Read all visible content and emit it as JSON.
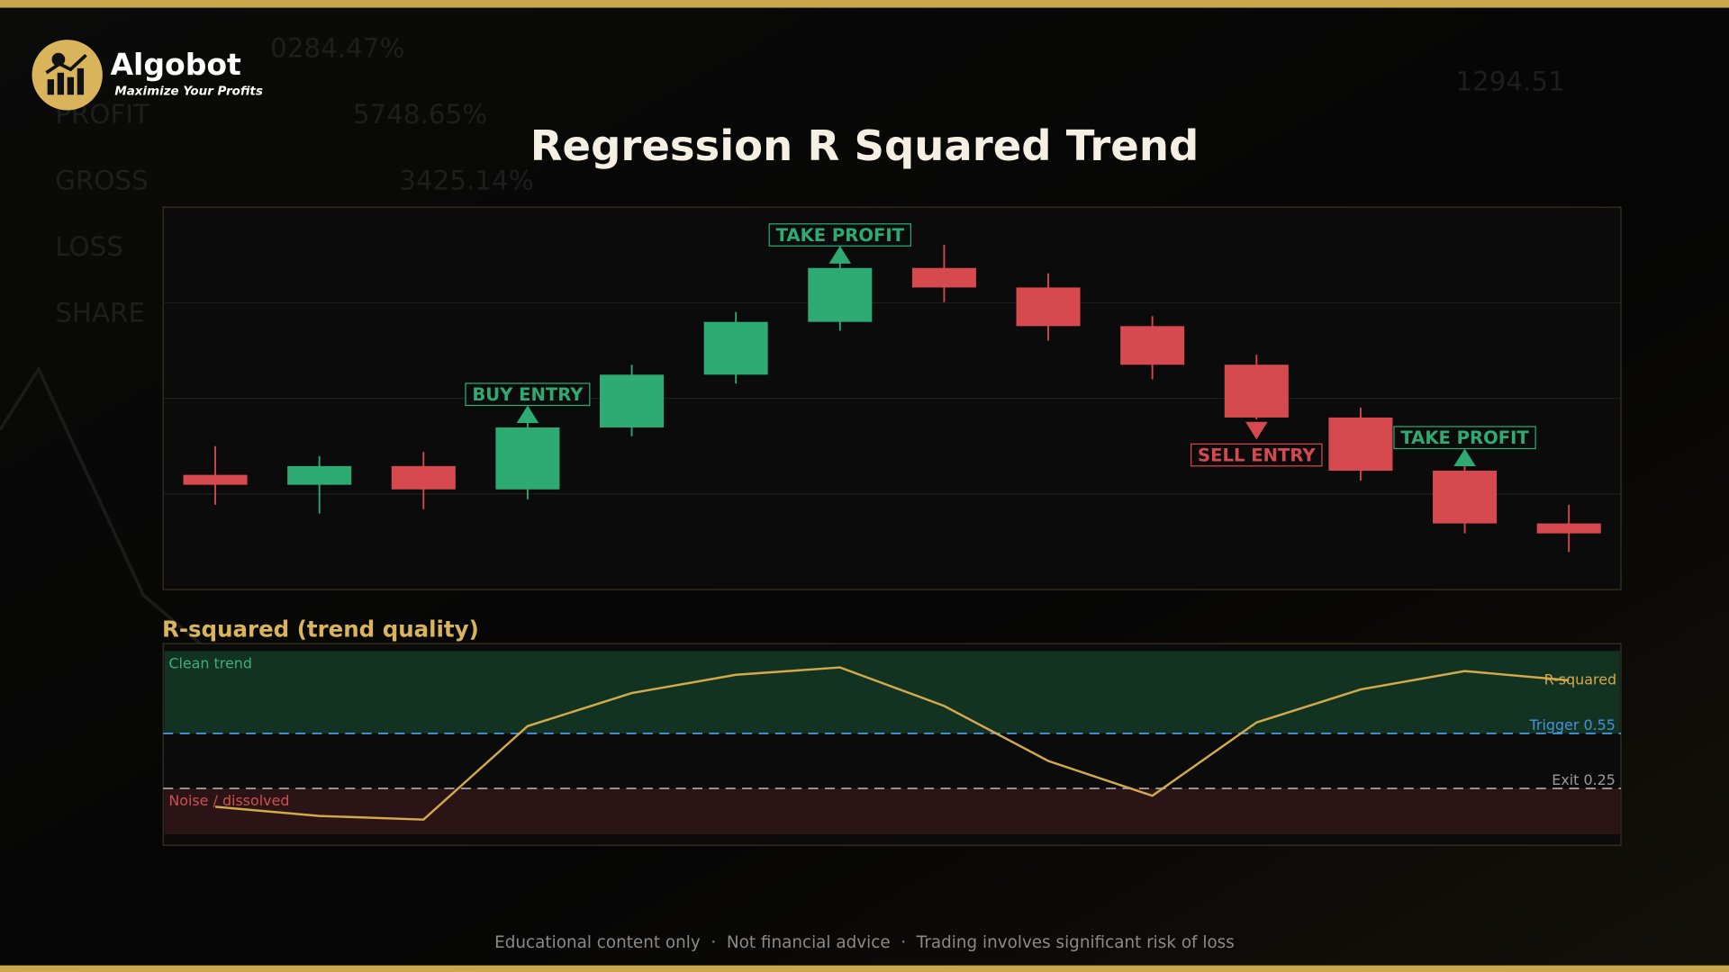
{
  "brand": {
    "name": "Algobot",
    "tagline": "Maximize Your Profits"
  },
  "background_text": {
    "labels": [
      "PROFIT",
      "GROSS",
      "LOSS",
      "SHARE"
    ],
    "values": [
      "0284.47%",
      "5748.65%",
      "3425.14%",
      "1294.51"
    ]
  },
  "chart_data": [
    {
      "type": "candlestick",
      "title": "Regression R Squared Trend",
      "open": [
        30.0,
        27.4,
        32.3,
        26.2,
        42.4,
        56.2,
        70.0,
        84.1,
        79.0,
        68.9,
        58.8,
        45.0,
        31.1,
        17.3
      ],
      "high": [
        37.5,
        34.9,
        36.0,
        43.8,
        58.8,
        72.6,
        87.9,
        90.2,
        82.7,
        71.5,
        61.4,
        47.6,
        33.7,
        22.2
      ],
      "low": [
        22.2,
        19.9,
        21.0,
        23.6,
        40.1,
        53.9,
        67.7,
        75.2,
        65.1,
        55.0,
        44.5,
        28.5,
        14.7,
        9.8
      ],
      "close": [
        27.4,
        32.3,
        26.2,
        42.4,
        56.2,
        70.0,
        84.1,
        79.0,
        68.9,
        58.8,
        45.0,
        31.1,
        17.3,
        14.7
      ],
      "up_color": "#2eaa73",
      "down_color": "#d64a4f",
      "ylim": [
        0,
        100
      ],
      "grid_lines": [
        25,
        50,
        75
      ],
      "signals": [
        null,
        null,
        null,
        {
          "label": "BUY ENTRY",
          "direction": "up",
          "color": "#2eaa73"
        },
        null,
        null,
        {
          "label": "TAKE PROFIT",
          "direction": "up",
          "color": "#2eaa73"
        },
        null,
        null,
        null,
        {
          "label": "SELL ENTRY",
          "direction": "down",
          "color": "#d64a4f"
        },
        null,
        {
          "label": "TAKE PROFIT",
          "direction": "up",
          "color": "#2eaa73"
        },
        null
      ]
    },
    {
      "type": "line",
      "title": "R-squared (trend quality)",
      "series": [
        {
          "name": "R-squared",
          "color": "#d4a94a",
          "values": [
            0.15,
            0.1,
            0.08,
            0.59,
            0.77,
            0.87,
            0.91,
            0.7,
            0.4,
            0.21,
            0.61,
            0.79,
            0.89,
            0.84
          ]
        }
      ],
      "ylim": [
        -0.06,
        1.04
      ],
      "bands": [
        {
          "label": "Clean trend",
          "from": 0.55,
          "to": 1.0,
          "color": "#123322",
          "text_color": "#3fae78"
        },
        {
          "label": "Noise / dissolved",
          "from": 0,
          "to": 0.25,
          "color": "#2a1416",
          "text_color": "#d0504f"
        }
      ],
      "thresholds": [
        {
          "label": "Trigger 0.55",
          "value": 0.55,
          "color": "#4a90d9"
        },
        {
          "label": "Exit 0.25",
          "value": 0.25,
          "color": "#9a9a9a"
        }
      ]
    }
  ],
  "footer": "Educational content only  ·  Not financial advice  ·  Trading involves significant risk of loss"
}
